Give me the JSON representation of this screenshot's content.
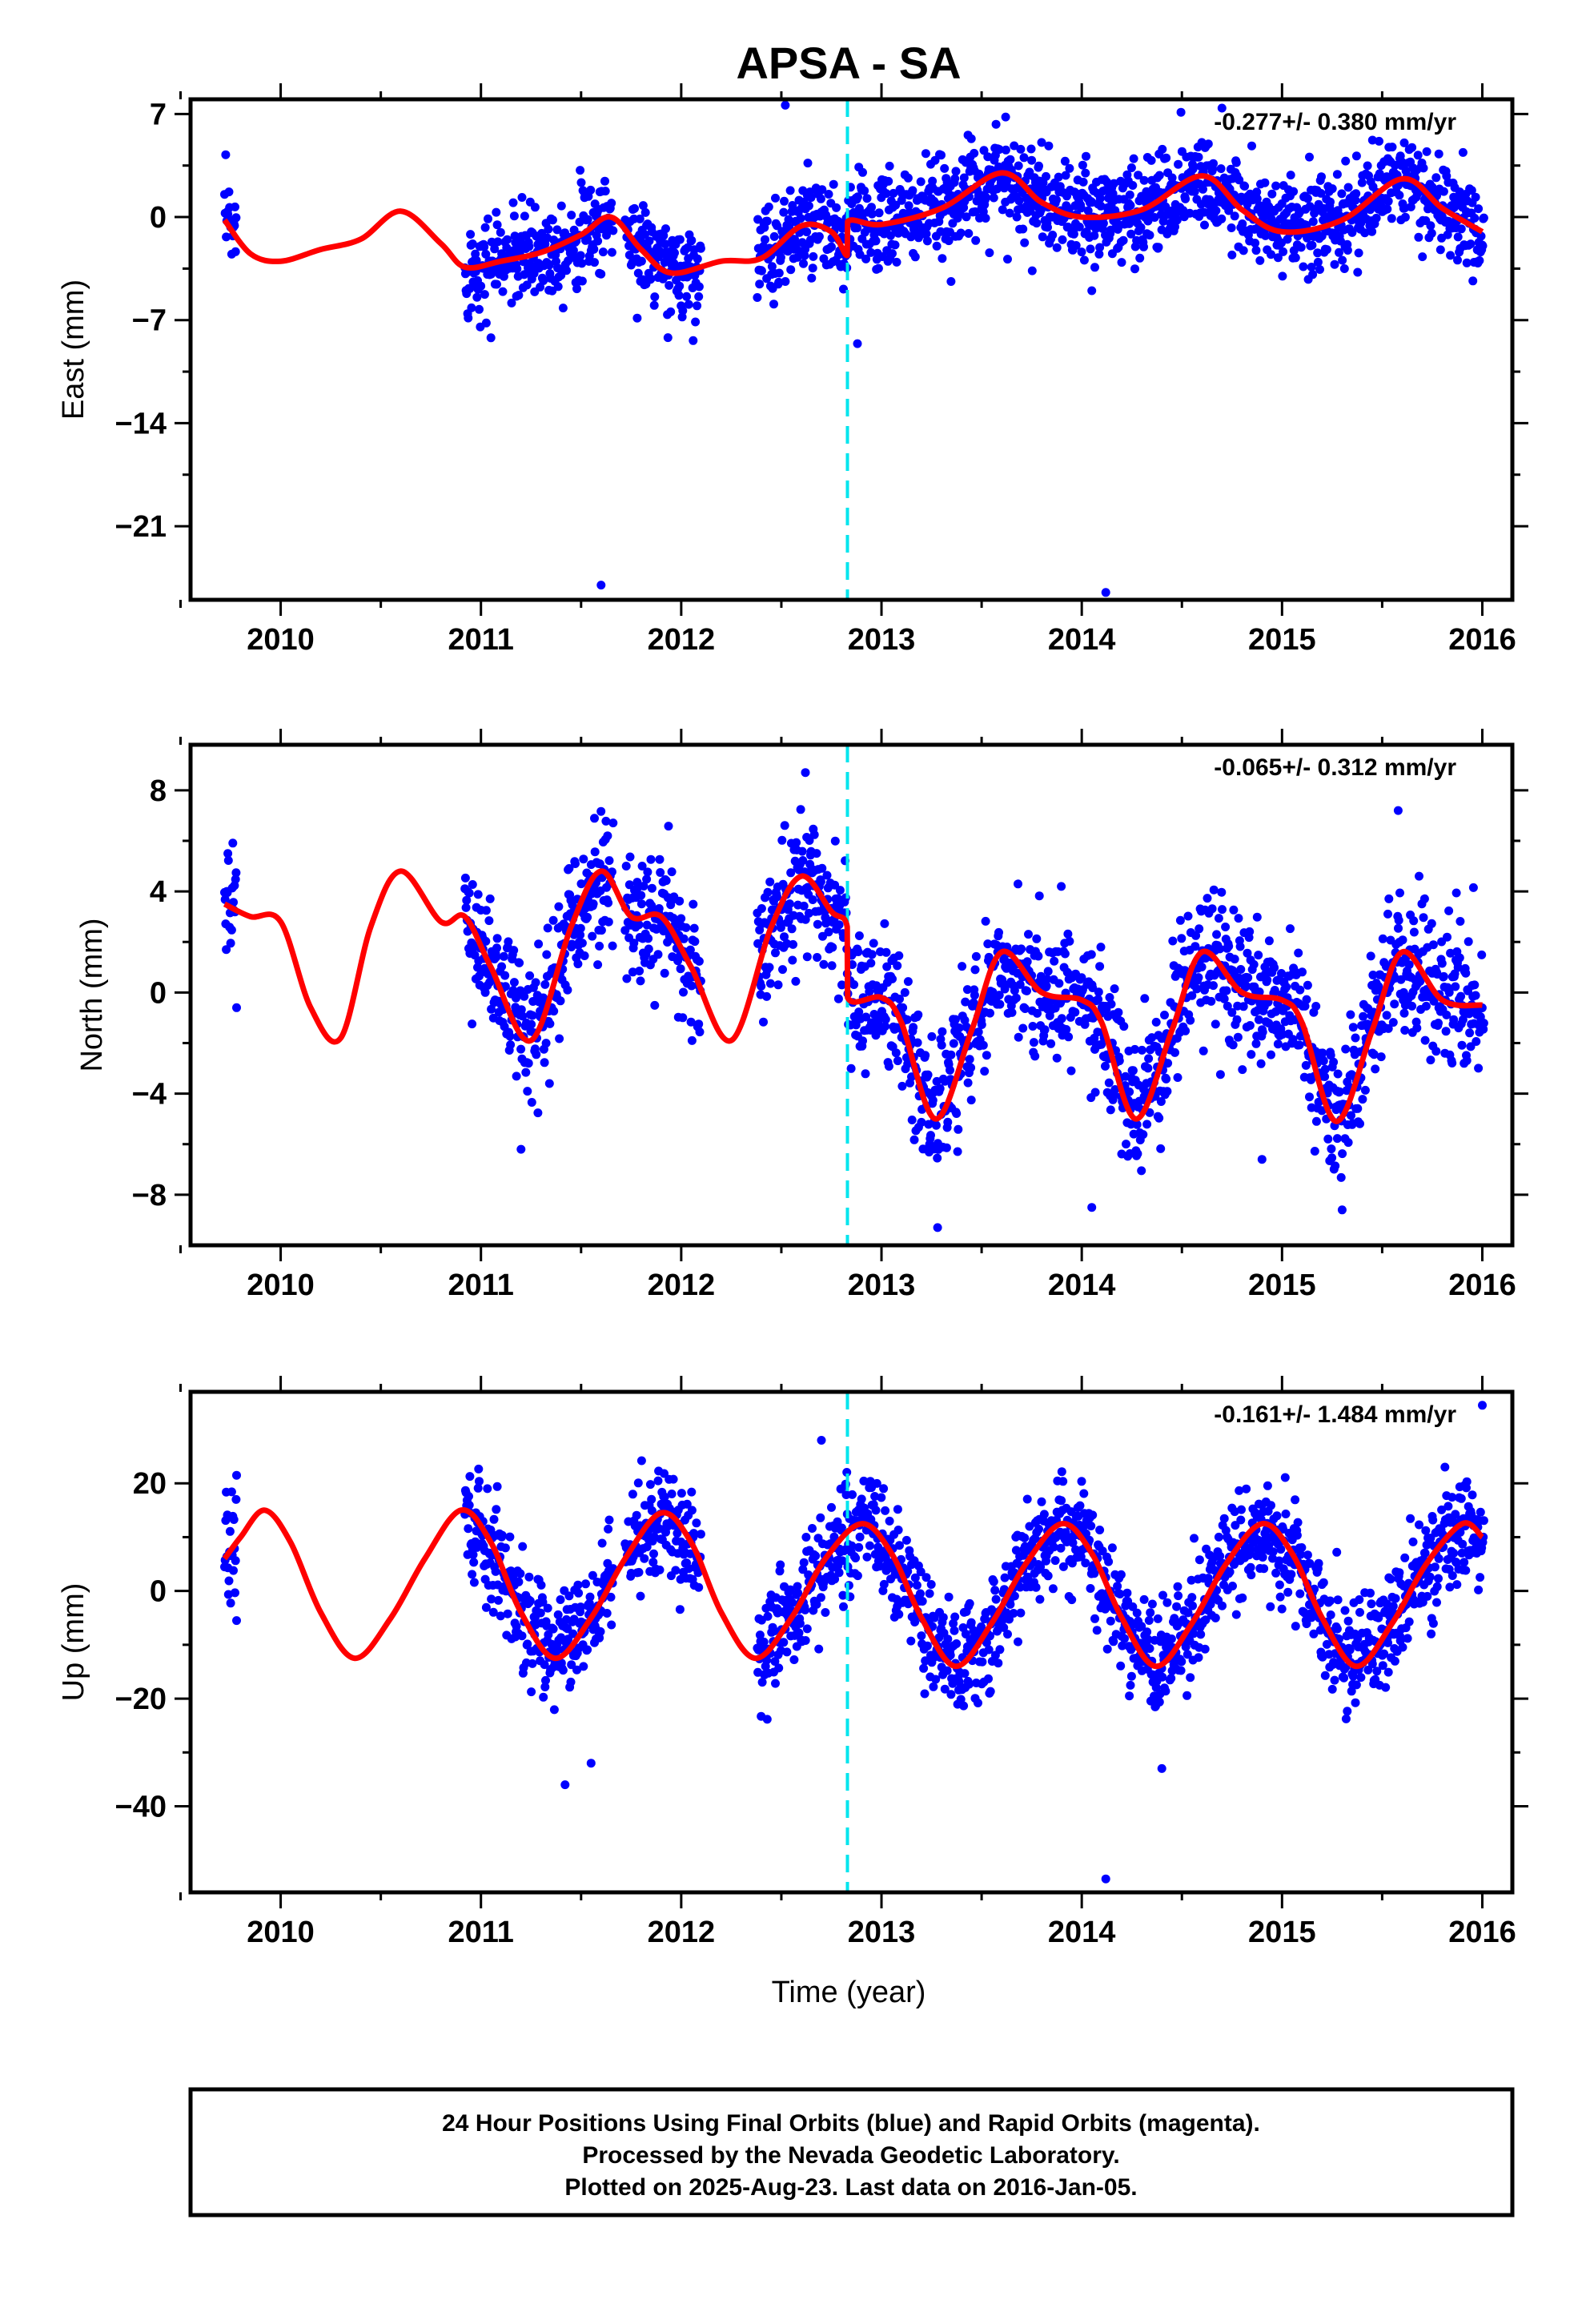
{
  "title": "APSA - SA",
  "xlabel": "Time (year)",
  "footer": [
    "24 Hour Positions Using Final Orbits (blue) and Rapid Orbits (magenta).",
    "Processed by the Nevada Geodetic Laboratory.",
    "Plotted on 2025-Aug-23. Last data on 2016-Jan-05."
  ],
  "colors": {
    "points": "#0000ff",
    "model": "#ff0000",
    "step": "#00e5ee",
    "frame": "#000000"
  },
  "chart_data": [
    {
      "type": "scatter",
      "title": "APSA - SA",
      "ylabel": "East (mm)",
      "rate": "-0.277+/- 0.380 mm/yr",
      "xlim": [
        2009.55,
        2016.15
      ],
      "ylim": [
        -26,
        8
      ],
      "xticks": [
        2010,
        2011,
        2012,
        2013,
        2014,
        2015,
        2016
      ],
      "yticks": [
        7,
        0,
        -7,
        -14,
        -21
      ],
      "equipment_change": 2012.83,
      "model_curve": {
        "x": [
          2009.72,
          2009.85,
          2010.0,
          2010.2,
          2010.4,
          2010.6,
          2010.8,
          2010.92,
          2011.1,
          2011.3,
          2011.5,
          2011.65,
          2011.8,
          2011.95,
          2012.2,
          2012.4,
          2012.6,
          2012.75,
          2012.829,
          2012.831,
          2013.0,
          2013.3,
          2013.6,
          2013.8,
          2014.0,
          2014.3,
          2014.6,
          2014.8,
          2015.0,
          2015.3,
          2015.6,
          2015.8,
          2016.0
        ],
        "y": [
          -0.2,
          -2.5,
          -3.0,
          -2.2,
          -1.5,
          0.4,
          -1.8,
          -3.4,
          -3.0,
          -2.4,
          -1.2,
          0.0,
          -2.2,
          -3.8,
          -3.0,
          -2.8,
          -0.6,
          -1.0,
          -2.6,
          -0.3,
          -0.5,
          0.6,
          3.0,
          1.0,
          0.0,
          0.5,
          2.8,
          0.5,
          -1.0,
          -0.2,
          2.6,
          0.6,
          -1.0
        ]
      },
      "data_segments": [
        [
          2009.72,
          2009.78
        ],
        [
          2010.92,
          2011.66
        ],
        [
          2011.72,
          2012.1
        ],
        [
          2012.38,
          2016.01
        ]
      ],
      "scatter_sd": 1.6,
      "outliers": [
        [
          2012.52,
          7.6
        ],
        [
          2013.62,
          6.8
        ],
        [
          2014.7,
          7.4
        ],
        [
          2011.6,
          -25
        ],
        [
          2014.12,
          -25.5
        ],
        [
          2012.88,
          -8.6
        ],
        [
          2014.05,
          -5.0
        ],
        [
          2011.05,
          -8.2
        ]
      ]
    },
    {
      "type": "scatter",
      "title": "",
      "ylabel": "North (mm)",
      "rate": "-0.065+/- 0.312 mm/yr",
      "xlim": [
        2009.55,
        2016.15
      ],
      "ylim": [
        -10,
        9.8
      ],
      "xticks": [
        2010,
        2011,
        2012,
        2013,
        2014,
        2015,
        2016
      ],
      "yticks": [
        8,
        4,
        0,
        -4,
        -8
      ],
      "equipment_change": 2012.83,
      "model_curve": {
        "x": [
          2009.72,
          2009.85,
          2010.0,
          2010.15,
          2010.3,
          2010.45,
          2010.6,
          2010.8,
          2010.92,
          2011.05,
          2011.25,
          2011.45,
          2011.6,
          2011.75,
          2011.9,
          2012.05,
          2012.25,
          2012.45,
          2012.6,
          2012.75,
          2012.829,
          2012.831,
          2013.0,
          2013.1,
          2013.27,
          2013.45,
          2013.6,
          2013.8,
          2014.0,
          2014.1,
          2014.27,
          2014.45,
          2014.6,
          2014.8,
          2015.0,
          2015.1,
          2015.27,
          2015.45,
          2015.6,
          2015.8,
          2016.0
        ],
        "y": [
          3.5,
          3.0,
          2.8,
          -0.6,
          -1.8,
          2.6,
          4.8,
          2.8,
          3.0,
          1.0,
          -1.9,
          2.6,
          4.8,
          3.0,
          3.0,
          1.0,
          -1.9,
          2.6,
          4.6,
          3.2,
          2.6,
          -0.2,
          -0.2,
          -1.2,
          -5.0,
          -1.5,
          1.6,
          0.0,
          -0.3,
          -1.2,
          -5.0,
          -1.5,
          1.6,
          0.0,
          -0.3,
          -1.2,
          -5.1,
          -1.5,
          1.6,
          -0.3,
          -0.5
        ]
      },
      "data_segments": [
        [
          2009.72,
          2009.78
        ],
        [
          2010.92,
          2011.66
        ],
        [
          2011.72,
          2012.1
        ],
        [
          2012.38,
          2016.01
        ]
      ],
      "scatter_sd": 1.3,
      "outliers": [
        [
          2015.58,
          7.2
        ],
        [
          2012.62,
          8.7
        ],
        [
          2011.2,
          -6.2
        ],
        [
          2009.78,
          -0.6
        ],
        [
          2014.9,
          -6.6
        ],
        [
          2013.28,
          -9.3
        ],
        [
          2014.05,
          -8.5
        ],
        [
          2015.3,
          -8.6
        ]
      ]
    },
    {
      "type": "scatter",
      "title": "",
      "ylabel": "Up (mm)",
      "rate": "-0.161+/- 1.484 mm/yr",
      "xlim": [
        2009.55,
        2016.15
      ],
      "ylim": [
        -56,
        37
      ],
      "xticks": [
        2010,
        2011,
        2012,
        2013,
        2014,
        2015,
        2016
      ],
      "yticks": [
        20,
        0,
        -20,
        -40
      ],
      "equipment_change": 2012.83,
      "model_curve": {
        "x": [
          2009.72,
          2009.8,
          2009.92,
          2010.05,
          2010.2,
          2010.37,
          2010.55,
          2010.72,
          2010.9,
          2011.05,
          2011.2,
          2011.37,
          2011.55,
          2011.72,
          2011.9,
          2012.05,
          2012.2,
          2012.37,
          2012.55,
          2012.72,
          2012.9,
          2013.05,
          2013.2,
          2013.37,
          2013.55,
          2013.72,
          2013.9,
          2014.05,
          2014.2,
          2014.37,
          2014.55,
          2014.72,
          2014.9,
          2015.05,
          2015.2,
          2015.37,
          2015.55,
          2015.72,
          2015.9,
          2016.0
        ],
        "y": [
          6,
          10,
          15,
          9,
          -4,
          -12.5,
          -5,
          6,
          15,
          9,
          -4,
          -12.5,
          -5,
          6,
          14.5,
          9,
          -4,
          -12.5,
          -5,
          6,
          12.5,
          7,
          -5,
          -14,
          -6,
          5,
          12.5,
          7,
          -5,
          -14,
          -6,
          5,
          12.5,
          7,
          -5,
          -14,
          -6,
          5,
          12.5,
          10
        ]
      },
      "data_segments": [
        [
          2009.72,
          2009.78
        ],
        [
          2010.92,
          2011.66
        ],
        [
          2011.72,
          2012.1
        ],
        [
          2012.38,
          2016.01
        ]
      ],
      "scatter_sd": 5.0,
      "outliers": [
        [
          2016.0,
          34.5
        ],
        [
          2014.12,
          -53.5
        ],
        [
          2011.42,
          -36
        ],
        [
          2011.55,
          -32
        ],
        [
          2014.4,
          -33
        ],
        [
          2012.7,
          28
        ],
        [
          2009.78,
          -5.5
        ],
        [
          2009.78,
          21.5
        ]
      ]
    }
  ]
}
